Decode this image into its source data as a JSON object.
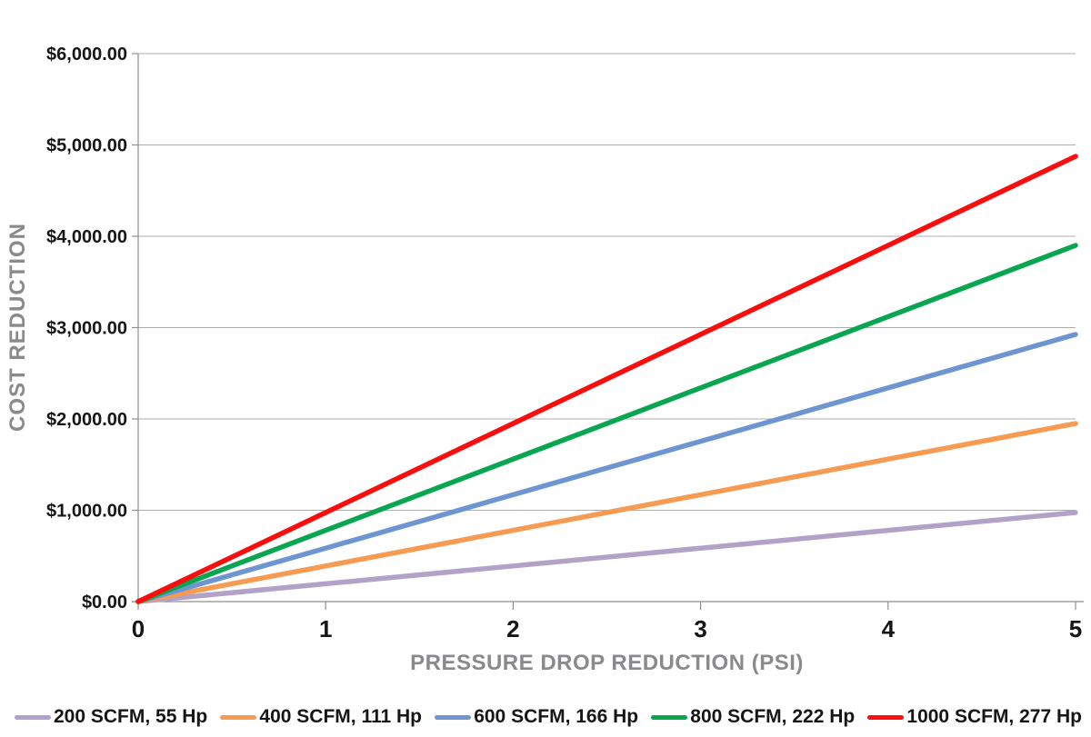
{
  "chart_data": {
    "type": "line",
    "title": "",
    "xlabel": "PRESSURE DROP REDUCTION (PSI)",
    "ylabel": "COST REDUCTION",
    "x": [
      0,
      1,
      2,
      3,
      4,
      5
    ],
    "xlim": [
      0,
      5
    ],
    "ylim": [
      0,
      6000
    ],
    "ytick_interval": 1000,
    "ytick_labels": [
      "$0.00",
      "$1,000.00",
      "$2,000.00",
      "$3,000.00",
      "$4,000.00",
      "$5,000.00",
      "$6,000.00"
    ],
    "xtick_labels": [
      "0",
      "1",
      "2",
      "3",
      "4",
      "5"
    ],
    "grid": "horizontal-only",
    "legend_position": "bottom",
    "series": [
      {
        "name": "200 SCFM, 55 Hp",
        "color": "#b3a2c7",
        "values": [
          0,
          195,
          390,
          585,
          780,
          975
        ]
      },
      {
        "name": "400 SCFM, 111 Hp",
        "color": "#f79b52",
        "values": [
          0,
          390,
          780,
          1170,
          1560,
          1950
        ]
      },
      {
        "name": "600 SCFM, 166 Hp",
        "color": "#6d95d1",
        "values": [
          0,
          585,
          1170,
          1755,
          2340,
          2925
        ]
      },
      {
        "name": "800 SCFM, 222 Hp",
        "color": "#09a651",
        "values": [
          0,
          780,
          1560,
          2340,
          3120,
          3900
        ]
      },
      {
        "name": "1000 SCFM, 277 Hp",
        "color": "#f90d0d",
        "values": [
          0,
          975,
          1950,
          2925,
          3900,
          4875
        ]
      }
    ],
    "style": {
      "gridline_color": "#adadad",
      "axis_color": "#8f8f8f",
      "tick_label_color": "#161616",
      "axis_title_color": "#8a8a8d",
      "line_width": 5.5
    }
  }
}
